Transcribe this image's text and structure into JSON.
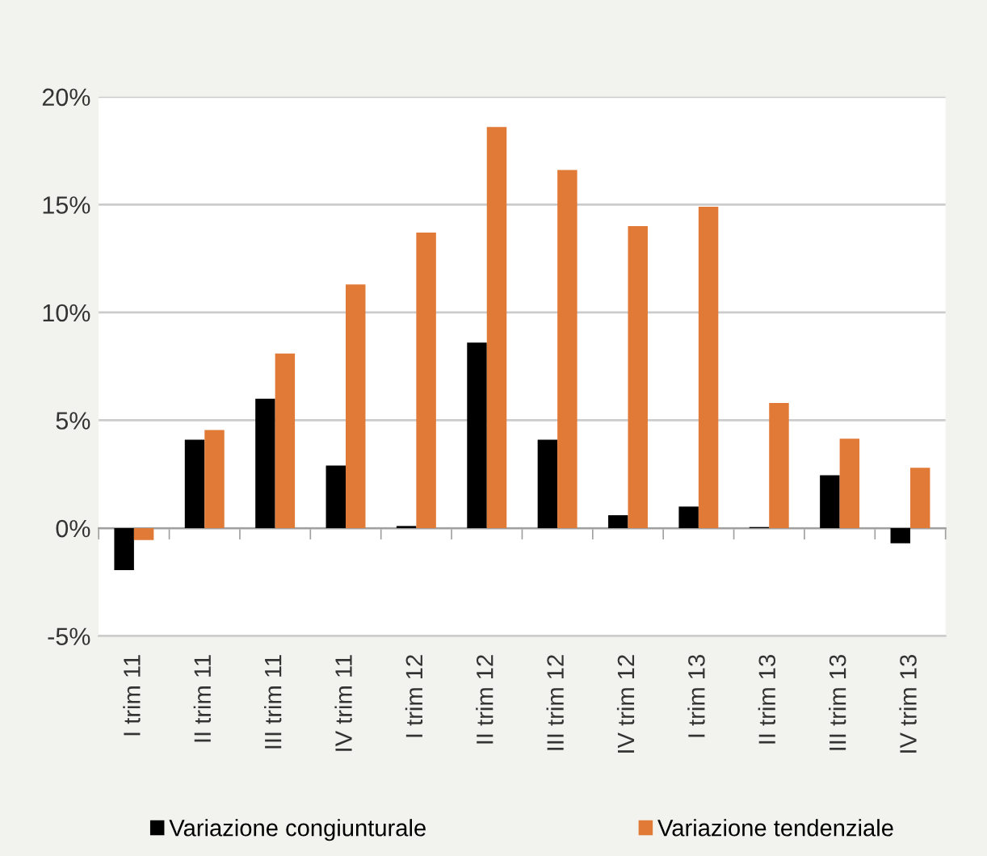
{
  "chart_data": {
    "type": "bar",
    "categories": [
      "I trim 11",
      "II trim 11",
      "III trim 11",
      "IV trim 11",
      "I trim 12",
      "II trim 12",
      "III trim 12",
      "IV trim 12",
      "I trim 13",
      "II trim 13",
      "III trim 13",
      "IV trim 13"
    ],
    "series": [
      {
        "name": "Variazione congiunturale",
        "color": "#000000",
        "values": [
          -1.95,
          4.1,
          6.0,
          2.9,
          0.1,
          8.6,
          4.1,
          0.6,
          1.0,
          0.05,
          2.45,
          -0.7
        ]
      },
      {
        "name": "Variazione tendenziale",
        "color": "#e07a36",
        "values": [
          -0.55,
          4.55,
          8.1,
          11.3,
          13.7,
          18.6,
          16.6,
          14.0,
          14.9,
          5.8,
          4.15,
          2.8
        ]
      }
    ],
    "ylim": [
      -5,
      20
    ],
    "yticks": [
      {
        "value": -5,
        "label": "-5%"
      },
      {
        "value": 0,
        "label": "0%"
      },
      {
        "value": 5,
        "label": "5%"
      },
      {
        "value": 10,
        "label": "10%"
      },
      {
        "value": 15,
        "label": "15%"
      },
      {
        "value": 20,
        "label": "20%"
      }
    ],
    "grid": "y",
    "legend": "bottom"
  }
}
